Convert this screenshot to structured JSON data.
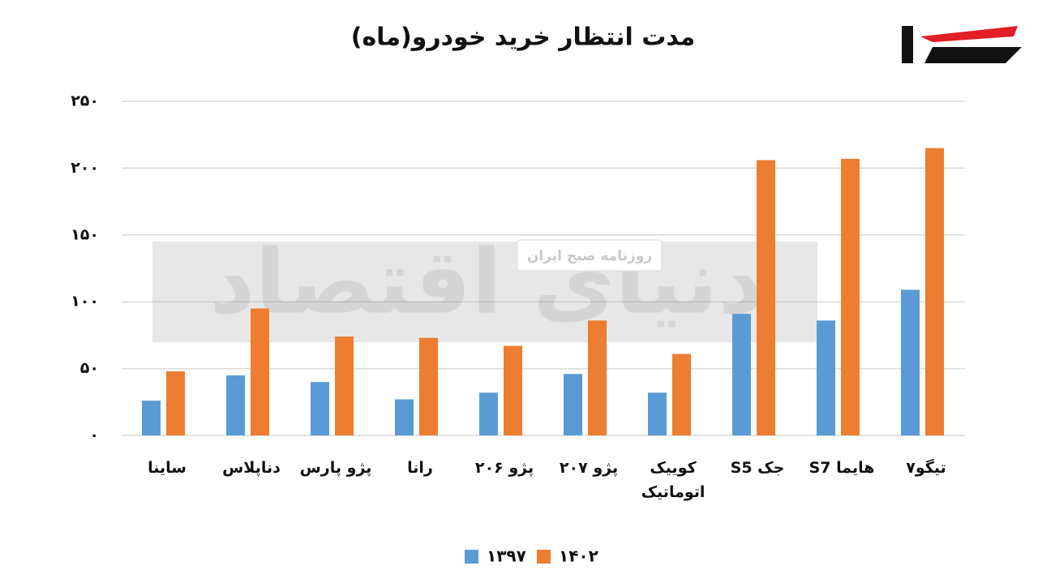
{
  "chart_data": {
    "type": "bar",
    "title": "مدت انتظار خرید خودرو(ماه)",
    "categories": [
      "ساینا",
      "دناپلاس",
      "پژو پارس",
      "رانا",
      "پژو ۲۰۶",
      "پژو ۲۰۷",
      "کوییک اتوماتیک",
      "جک S5",
      "هایما S7",
      "تیگو۷"
    ],
    "series": [
      {
        "name": "۱۳۹۷",
        "color": "#5b9bd5",
        "values": [
          26,
          45,
          40,
          27,
          32,
          46,
          32,
          91,
          86,
          109
        ]
      },
      {
        "name": "۱۴۰۲",
        "color": "#ed7d31",
        "values": [
          48,
          95,
          74,
          73,
          67,
          86,
          61,
          206,
          207,
          215
        ]
      }
    ],
    "ylim": [
      0,
      250
    ],
    "yticks": [
      {
        "value": 0,
        "label": "۰"
      },
      {
        "value": 50,
        "label": "۵۰"
      },
      {
        "value": 100,
        "label": "۱۰۰"
      },
      {
        "value": 150,
        "label": "۱۵۰"
      },
      {
        "value": 200,
        "label": "۲۰۰"
      },
      {
        "value": 250,
        "label": "۲۵۰"
      }
    ],
    "grid": true
  },
  "watermark": {
    "title": "دنیای اقتصاد",
    "subtitle": "روزنامه صبح ایران"
  }
}
